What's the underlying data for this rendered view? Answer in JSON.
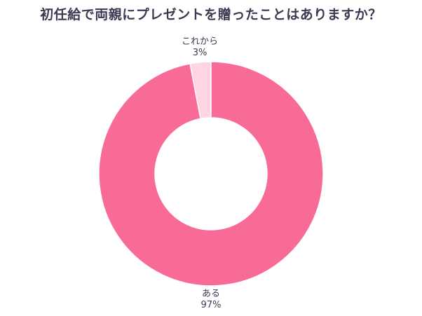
{
  "chart_data": {
    "type": "pie",
    "title": "初任給で両親にプレゼントを贈ったことはありますか？",
    "categories": [
      "これから",
      "ある"
    ],
    "values": [
      3,
      97
    ],
    "unit": "%",
    "colors": [
      "#ffd4e3",
      "#f96b97"
    ],
    "donut": true,
    "legend": "none"
  }
}
